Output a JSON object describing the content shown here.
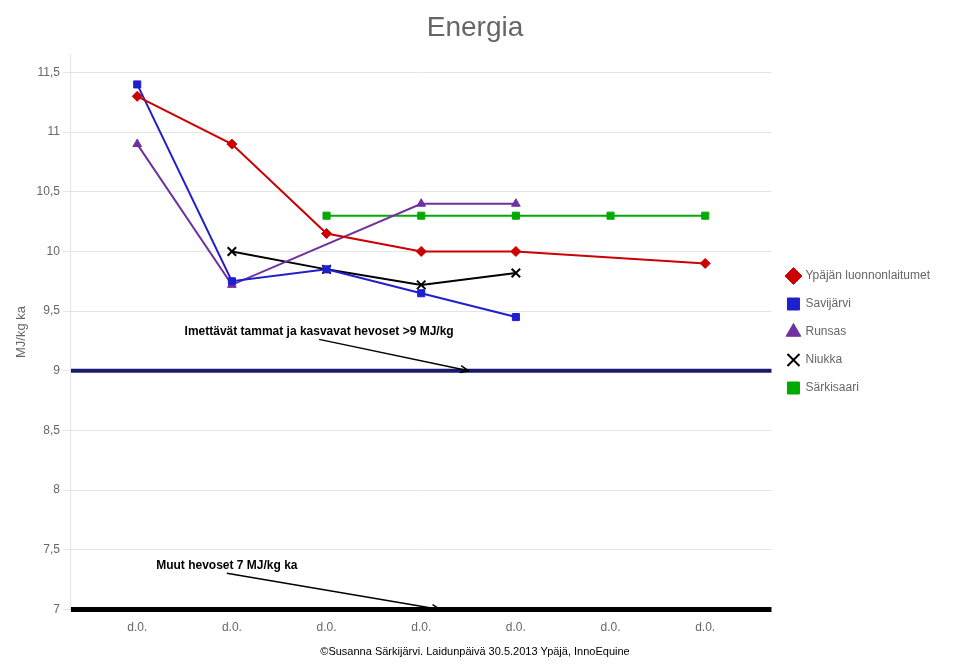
{
  "chart_data": {
    "type": "line",
    "title": "Energia",
    "ylabel": "MJ/kg ka",
    "xlim": [
      0.3,
      7.7
    ],
    "xticks": [
      {
        "value": 1,
        "label": "d.0."
      },
      {
        "value": 2,
        "label": "d.0."
      },
      {
        "value": 3,
        "label": "d.0."
      },
      {
        "value": 4,
        "label": "d.0."
      },
      {
        "value": 5,
        "label": "d.0."
      },
      {
        "value": 6,
        "label": "d.0."
      },
      {
        "value": 7,
        "label": "d.0."
      }
    ],
    "ylim": [
      7,
      11.65
    ],
    "yticks": [
      7,
      {
        "value": 7.5,
        "label": "7,5"
      },
      8,
      {
        "value": 8.5,
        "label": "8,5"
      },
      9,
      {
        "value": 9.5,
        "label": "9,5"
      },
      10,
      {
        "value": 10.5,
        "label": "10,5"
      },
      11,
      {
        "value": 11.5,
        "label": "11,5"
      }
    ],
    "grid": true,
    "legend": "right",
    "series": [
      {
        "name": "Ypäjän luonnonlaitumet",
        "color": "#CC0000",
        "marker": "diamond",
        "x": [
          1,
          2,
          3,
          4,
          5,
          7
        ],
        "values": [
          11.3,
          10.9,
          10.15,
          10.0,
          10.0,
          9.9
        ]
      },
      {
        "name": "Savijärvi",
        "color": "#1F1FCF",
        "marker": "square",
        "x": [
          1,
          2,
          3,
          4,
          5
        ],
        "values": [
          11.4,
          9.75,
          9.85,
          9.65,
          9.45
        ]
      },
      {
        "name": "Runsas",
        "color": "#7030A0",
        "marker": "triangle",
        "x": [
          1,
          2,
          4,
          5
        ],
        "values": [
          10.9,
          9.72,
          10.4,
          10.4
        ]
      },
      {
        "name": "Niukka",
        "color": "#000000",
        "marker": "x",
        "x": [
          2,
          3,
          4,
          5
        ],
        "values": [
          10.0,
          9.85,
          9.72,
          9.82
        ]
      },
      {
        "name": "Särkisaari",
        "color": "#00AA00",
        "marker": "square",
        "x": [
          3,
          4,
          5,
          6,
          7
        ],
        "values": [
          10.3,
          10.3,
          10.3,
          10.3,
          10.3
        ]
      }
    ],
    "hlines": [
      {
        "value": 9.0,
        "color": "#1A1A6E"
      },
      {
        "value": 7.0,
        "color": "#000000"
      }
    ],
    "annotations": [
      {
        "text": "Imettävät tammat ja kasvavat hevoset >9 MJ/kg",
        "x": 1.5,
        "y": 9.28,
        "arrow_x": 4.5,
        "arrow_y": 9.0
      },
      {
        "text": "Muut hevoset 7 MJ/kg ka",
        "x": 1.2,
        "y": 7.32,
        "arrow_x": 4.2,
        "arrow_y": 7.0
      }
    ],
    "footer": "©Susanna Särkijärvi. Laidunpäivä 30.5.2013 Ypäjä, InnoEquine"
  }
}
